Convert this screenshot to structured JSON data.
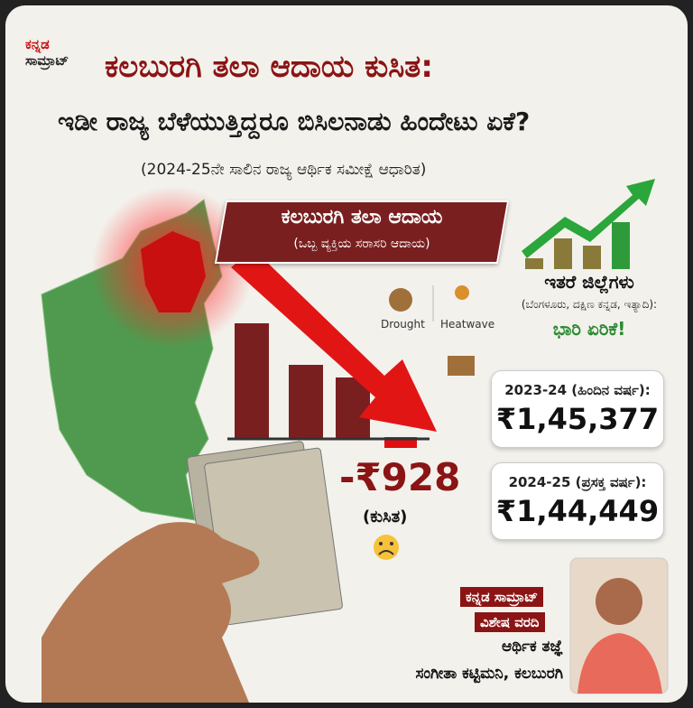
{
  "brand": {
    "line1": "ಕನ್ನಡ",
    "line2": "ಸಾಮ್ರಾಟ್"
  },
  "header": {
    "title": "ಕಲಬುರಗಿ ತಲಾ ಆದಾಯ ಕುಸಿತ:",
    "subtitle": "ಇಡೀ ರಾಜ್ಯ ಬೆಳೆಯುತ್ತಿದ್ದರೂ ಬಿಸಿಲನಾಡು ಹಿಂದೇಟು ಏಕೆ?",
    "source": "(2024-25ನೇ ಸಾಲಿನ ರಾಜ್ಯ ಆರ್ಥಿಕ ಸಮೀಕ್ಷೆ ಆಧಾರಿತ)"
  },
  "banner": {
    "title": "ಕಲಬುರಗಿ ತಲಾ ಆದಾಯ",
    "subtitle": "(ಒಬ್ಬ ವ್ಯಕ್ತಿಯ ಸರಾಸರಿ ಆದಾಯ)"
  },
  "icons": [
    "Drought",
    "Heatwave"
  ],
  "others": {
    "title": "ಇತರೆ ಜಿಲ್ಲೆಗಳು",
    "examples": "(ಬೆಂಗಳೂರು, ದಕ್ಷಿಣ ಕನ್ನಡ, ಇತ್ಯಾದಿ):",
    "result": "ಭಾರಿ ಏರಿಕೆ!"
  },
  "cards": [
    {
      "label": "2023-24 (ಹಿಂದಿನ ವರ್ಷ):",
      "amount": "₹1,45,377"
    },
    {
      "label": "2024-25 (ಪ್ರಸಕ್ತ ವರ್ಷ):",
      "amount": "₹1,44,449"
    }
  ],
  "drop": {
    "amount": "-₹928",
    "label": "(ಕುಸಿತ)"
  },
  "byline": {
    "brand": "ಕನ್ನಡ ಸಾಮ್ರಾಟ್",
    "tag": "ವಿಶೇಷ ವರದಿ",
    "role": "ಆರ್ಥಿಕ ತಜ್ಞೆ",
    "author": "ಸಂಗೀತಾ ಕಟ್ಟಿಮನಿ, ಕಲಬುರಗಿ"
  }
}
